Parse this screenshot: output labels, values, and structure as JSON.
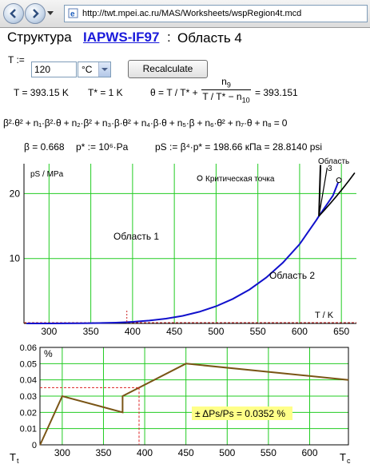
{
  "browser": {
    "url": "http://twt.mpei.ac.ru/MAS/Worksheets/wspRegion4t.mcd"
  },
  "header": {
    "title_prefix": "Структура",
    "link": "IAPWS-IF97",
    "colon": ":",
    "region": "Область 4"
  },
  "inputs": {
    "t_label": "T :=",
    "t_value": "120",
    "t_unit": "°C",
    "recalc_label": "Recalculate"
  },
  "results": {
    "T": "T = 393.15 K",
    "Tstar": "T* = 1 K",
    "theta_left": "θ = T / T* +",
    "theta_num": "n",
    "theta_num_sub": "9",
    "theta_den": "T / T* − n",
    "theta_den_sub": "10",
    "theta_right": "= 393.151",
    "equation": "β²·θ² + n₁·β²·θ + n₂·β² + n₃·β·θ² + n₄·β·θ + n₅·β + n₆·θ² + n₇·θ + n₈ = 0",
    "beta": "β = 0.668",
    "pstar": "p* := 10⁶·Pa",
    "ps": "pS := β⁴·p* = 198.66 кПа = 28.8140 psi"
  },
  "chart_data": [
    {
      "type": "line",
      "ylabel": "pS / MPa",
      "xlabel": "T / K",
      "xlim": [
        270,
        668
      ],
      "ylim": [
        0,
        24.6
      ],
      "xticks": [
        300,
        350,
        400,
        450,
        500,
        550,
        600,
        650
      ],
      "yticks": [
        10,
        20
      ],
      "grid": true,
      "annotations": {
        "region1": "Область 1",
        "region2": "Область 2",
        "region3": "Область 3",
        "critical": "Критическая точка"
      },
      "series": [
        {
          "x": [
            273.16,
            300,
            320,
            340,
            360,
            380,
            393.15,
            400,
            420,
            440,
            460,
            480,
            500,
            520,
            540,
            560,
            580,
            600,
            620,
            623.15,
            640,
            647.1
          ],
          "y": [
            0.0006,
            0.0035,
            0.0106,
            0.0272,
            0.0622,
            0.129,
            0.1987,
            0.247,
            0.437,
            0.733,
            1.17,
            1.79,
            2.64,
            3.77,
            5.22,
            7.06,
            9.36,
            12.2,
            15.9,
            16.53,
            19.7,
            22.06
          ]
        }
      ],
      "critical_point": {
        "x": 647.1,
        "y": 22.06
      },
      "marker_T": 393.15
    },
    {
      "type": "line",
      "ylabel": "%",
      "x_left_label": "Tt",
      "x_right_label": "Tc",
      "xlim": [
        273,
        647
      ],
      "ylim": [
        0,
        0.06
      ],
      "xticks": [
        300,
        350,
        400,
        450,
        500,
        550,
        600
      ],
      "yticks": [
        0,
        0.01,
        0.02,
        0.03,
        0.04,
        0.05,
        0.06
      ],
      "ytick_labels": [
        "0",
        "0.01",
        "0.02",
        "0.03",
        "0.04",
        "0.05",
        "0.06"
      ],
      "grid": true,
      "series": [
        {
          "x": [
            273.16,
            300,
            373.15,
            373.15,
            450,
            647.1
          ],
          "y": [
            0,
            0.03,
            0.02,
            0.03,
            0.05,
            0.04
          ]
        }
      ],
      "marker": {
        "x": 393.15,
        "y": 0.0352
      },
      "annotation": "± ΔPs/Ps = 0.0352 %"
    }
  ]
}
